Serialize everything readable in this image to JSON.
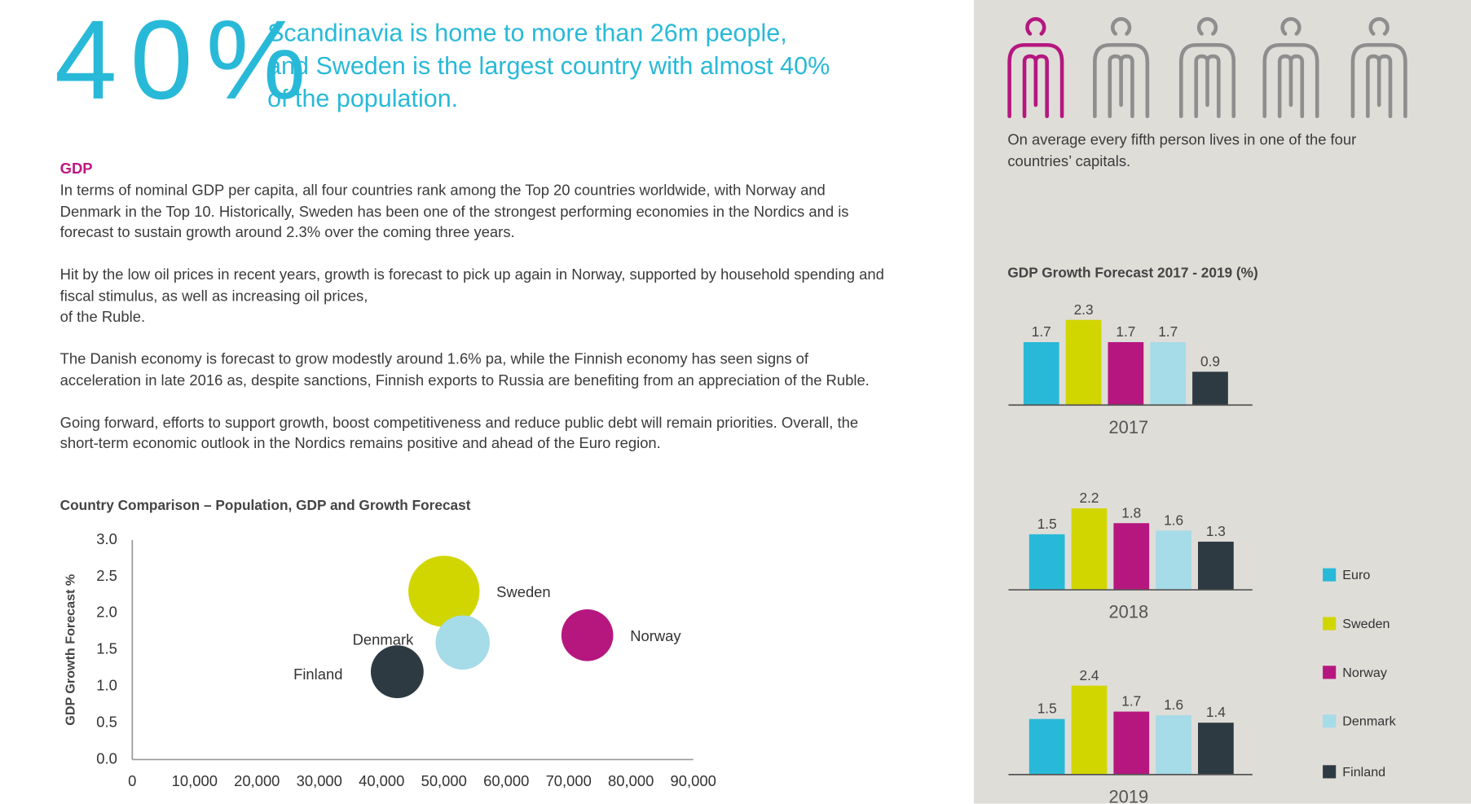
{
  "headline": {
    "big": "40%",
    "text": "Scandinavia is home to more than 26m people, and Sweden is the largest country with almost 40% of the population."
  },
  "sidebar_note": "On average every fifth person lives in one of the four countries’ capitals.",
  "gdp_section": {
    "heading": "GDP",
    "paragraphs": [
      "In terms of nominal GDP per capita, all four countries rank among the Top 20 countries worldwide, with Norway and Denmark in the Top 10. Historically, Sweden has been one of the strongest performing economies in the Nordics and is forecast to sustain growth around 2.3% over the coming three years.",
      "Hit by the low oil prices in recent years, growth is forecast to pick up again in Norway, supported by household spending and fiscal stimulus, as well as increasing oil prices,\nof the Ruble.",
      "The Danish economy is forecast to grow modestly around 1.6% pa, while the Finnish economy has seen signs of acceleration in late 2016 as, despite sanctions, Finnish exports to Russia are benefiting from an appreciation of the Ruble.",
      "Going forward, efforts to support growth, boost competitiveness and reduce public debt will remain priorities. Overall, the short-term economic outlook in the Nordics remains positive and ahead of the Euro region."
    ]
  },
  "chart_data": [
    {
      "type": "bubble",
      "title": "Country Comparison – Population, GDP and Growth Forecast",
      "y_label": "GDP Growth Forecast %",
      "xlim": [
        0,
        90000
      ],
      "xticks": [
        0,
        {
          "value": 10000,
          "label": "10,000"
        },
        {
          "value": 20000,
          "label": "20,000"
        },
        {
          "value": 30000,
          "label": "30,000"
        },
        {
          "value": 40000,
          "label": "40,000"
        },
        {
          "value": 50000,
          "label": "50,000"
        },
        {
          "value": 60000,
          "label": "60,000"
        },
        {
          "value": 70000,
          "label": "70,000"
        },
        {
          "value": 80000,
          "label": "80,000"
        },
        {
          "value": 90000,
          "label": "90,000"
        }
      ],
      "ylim": [
        0,
        3
      ],
      "yticks": [
        {
          "value": 0,
          "label": "0.0"
        },
        {
          "value": 0.5,
          "label": "0.5"
        },
        {
          "value": 1,
          "label": "1.0"
        },
        {
          "value": 1.5,
          "label": "1.5"
        },
        {
          "value": 2,
          "label": "2.0"
        },
        {
          "value": 2.5,
          "label": "2.5"
        },
        {
          "value": 3,
          "label": "3.0"
        }
      ],
      "series": [
        {
          "name": "Sweden",
          "color": "#d1d600",
          "x": [
            50000
          ],
          "values": [
            2.3
          ],
          "sizes": [
            10
          ]
        },
        {
          "name": "Denmark",
          "color": "#a6dbe8",
          "x": [
            53000
          ],
          "values": [
            1.6
          ],
          "sizes": [
            5.8
          ]
        },
        {
          "name": "Norway",
          "color": "#b5177f",
          "x": [
            73000
          ],
          "values": [
            1.7
          ],
          "sizes": [
            5.3
          ]
        },
        {
          "name": "Finland",
          "color": "#2d3a42",
          "x": [
            42500
          ],
          "values": [
            1.2
          ],
          "sizes": [
            5.5
          ]
        }
      ]
    },
    {
      "type": "grouped_bar",
      "title": "GDP Growth Forecast 2017 - 2019 (%)",
      "categories": [
        "2017",
        "2018",
        "2019"
      ],
      "series": [
        {
          "name": "Euro",
          "color": "#29b9d8",
          "values": [
            1.7,
            1.5,
            1.5
          ]
        },
        {
          "name": "Sweden",
          "color": "#d1d600",
          "values": [
            2.3,
            2.2,
            2.4
          ]
        },
        {
          "name": "Norway",
          "color": "#b5177f",
          "values": [
            1.7,
            1.8,
            1.7
          ]
        },
        {
          "name": "Denmark",
          "color": "#a6dbe8",
          "values": [
            1.7,
            1.6,
            1.6
          ]
        },
        {
          "name": "Finland",
          "color": "#2d3a42",
          "values": [
            0.9,
            1.3,
            1.4
          ]
        }
      ]
    }
  ]
}
